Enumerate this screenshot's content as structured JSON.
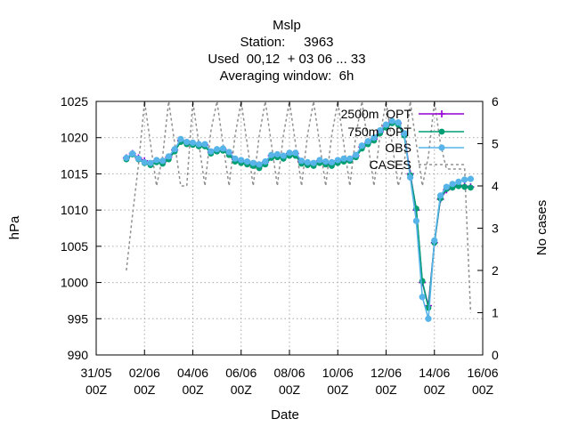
{
  "chart_data": {
    "type": "line",
    "title_lines": [
      "Mslp",
      "Station:     3963",
      "Used  00,12  + 03 06 ... 33",
      "Averaging window:  6h"
    ],
    "xlabel": "Date",
    "ylabel": "hPa",
    "y2label": "No cases",
    "xlim": [
      0,
      16
    ],
    "ylim": [
      990,
      1025
    ],
    "y2lim": [
      0,
      6
    ],
    "xticks": [
      {
        "value": 0,
        "line1": "31/05",
        "line2": "00Z"
      },
      {
        "value": 2,
        "line1": "02/06",
        "line2": "00Z"
      },
      {
        "value": 4,
        "line1": "04/06",
        "line2": "00Z"
      },
      {
        "value": 6,
        "line1": "06/06",
        "line2": "00Z"
      },
      {
        "value": 8,
        "line1": "08/06",
        "line2": "00Z"
      },
      {
        "value": 10,
        "line1": "10/06",
        "line2": "00Z"
      },
      {
        "value": 12,
        "line1": "12/06",
        "line2": "00Z"
      },
      {
        "value": 14,
        "line1": "14/06",
        "line2": "00Z"
      },
      {
        "value": 16,
        "line1": "16/06",
        "line2": "00Z"
      }
    ],
    "yticks": [
      990,
      995,
      1000,
      1005,
      1010,
      1015,
      1020,
      1025
    ],
    "y2ticks": [
      0,
      1,
      2,
      3,
      4,
      5,
      6
    ],
    "grid": true,
    "legend_position": "top-right",
    "series": [
      {
        "name": "2500m  OPT",
        "axis": "y",
        "color": "#9400d3",
        "marker": "plus",
        "x": [
          1.25,
          1.5,
          1.75,
          2,
          2.25,
          2.5,
          2.75,
          3,
          3.25,
          3.5,
          3.75,
          4,
          4.25,
          4.5,
          4.75,
          5,
          5.25,
          5.5,
          5.75,
          6,
          6.25,
          6.5,
          6.75,
          7,
          7.25,
          7.5,
          7.75,
          8,
          8.25,
          8.5,
          8.75,
          9,
          9.25,
          9.5,
          9.75,
          10,
          10.25,
          10.5,
          10.75,
          11,
          11.25,
          11.5,
          11.75,
          12,
          12.25,
          12.5,
          12.75,
          13,
          13.25,
          13.5,
          13.75,
          14,
          14.25,
          14.5,
          14.75,
          15,
          15.25,
          15.5
        ],
        "y": [
          1017.2,
          1017.8,
          1017.2,
          1016.8,
          1016.4,
          1016.8,
          1016.6,
          1017.3,
          1018.3,
          1019.6,
          1019.3,
          1019.2,
          1019.0,
          1019.0,
          1018.0,
          1018.3,
          1018.4,
          1017.9,
          1017.0,
          1016.8,
          1016.6,
          1016.4,
          1016.1,
          1016.6,
          1017.5,
          1017.6,
          1017.4,
          1017.8,
          1017.8,
          1016.7,
          1016.5,
          1016.4,
          1016.8,
          1016.6,
          1016.4,
          1016.8,
          1016.9,
          1017.0,
          1017.5,
          1018.7,
          1019.3,
          1019.8,
          1020.8,
          1021.6,
          1022.2,
          1022.0,
          1020.5,
          1015.0,
          1010.0,
          1000.0,
          996.8,
          1005.5,
          1011.5,
          1012.8,
          1013.2,
          1013.4,
          1013.3,
          1013.2
        ]
      },
      {
        "name": "750m  OPT",
        "axis": "y",
        "color": "#009e73",
        "marker": "circle",
        "x": [
          1.25,
          1.5,
          1.75,
          2,
          2.25,
          2.5,
          2.75,
          3,
          3.25,
          3.5,
          3.75,
          4,
          4.25,
          4.5,
          4.75,
          5,
          5.25,
          5.5,
          5.75,
          6,
          6.25,
          6.5,
          6.75,
          7,
          7.25,
          7.5,
          7.75,
          8,
          8.25,
          8.5,
          8.75,
          9,
          9.25,
          9.5,
          9.75,
          10,
          10.25,
          10.5,
          10.75,
          11,
          11.25,
          11.5,
          11.75,
          12,
          12.25,
          12.5,
          12.75,
          13,
          13.25,
          13.5,
          13.75,
          14,
          14.25,
          14.5,
          14.75,
          15,
          15.25,
          15.5
        ],
        "y": [
          1017.0,
          1017.7,
          1017.0,
          1016.5,
          1016.2,
          1016.6,
          1016.4,
          1017.0,
          1018.1,
          1019.4,
          1019.1,
          1019.0,
          1018.8,
          1018.8,
          1017.8,
          1018.1,
          1018.2,
          1017.6,
          1016.7,
          1016.5,
          1016.3,
          1016.1,
          1015.8,
          1016.3,
          1017.2,
          1017.3,
          1017.1,
          1017.5,
          1017.5,
          1016.4,
          1016.2,
          1016.1,
          1016.5,
          1016.3,
          1016.1,
          1016.5,
          1016.7,
          1016.8,
          1017.3,
          1018.5,
          1019.1,
          1019.6,
          1020.6,
          1021.4,
          1022.0,
          1021.8,
          1020.3,
          1014.8,
          1010.2,
          1000.2,
          996.5,
          1005.5,
          1011.6,
          1012.9,
          1013.1,
          1013.3,
          1013.2,
          1013.1
        ]
      },
      {
        "name": "OBS",
        "axis": "y",
        "color": "#56b4e9",
        "marker": "diamond",
        "x": [
          1.25,
          1.5,
          1.75,
          2,
          2.25,
          2.5,
          2.75,
          3,
          3.25,
          3.5,
          3.75,
          4,
          4.25,
          4.5,
          4.75,
          5,
          5.25,
          5.5,
          5.75,
          6,
          6.25,
          6.5,
          6.75,
          7,
          7.25,
          7.5,
          7.75,
          8,
          8.25,
          8.5,
          8.75,
          9,
          9.25,
          9.5,
          9.75,
          10,
          10.25,
          10.5,
          10.75,
          11,
          11.25,
          11.5,
          11.75,
          12,
          12.25,
          12.5,
          12.75,
          13,
          13.25,
          13.5,
          13.75,
          14,
          14.25,
          14.5,
          14.75,
          15,
          15.25,
          15.5
        ],
        "y": [
          1017.2,
          1017.8,
          1017.1,
          1016.6,
          1016.5,
          1016.9,
          1016.8,
          1017.4,
          1018.4,
          1019.8,
          1019.4,
          1019.3,
          1019.1,
          1019.1,
          1018.1,
          1018.4,
          1018.5,
          1018.0,
          1017.1,
          1016.9,
          1016.7,
          1016.5,
          1016.3,
          1016.7,
          1017.6,
          1017.7,
          1017.5,
          1017.9,
          1017.9,
          1016.8,
          1016.6,
          1016.5,
          1016.9,
          1016.7,
          1016.6,
          1016.9,
          1017.1,
          1017.1,
          1017.6,
          1018.9,
          1019.5,
          1020.0,
          1021.0,
          1021.8,
          1022.3,
          1022.1,
          1020.6,
          1014.5,
          1008.5,
          998.0,
          995.0,
          1005.8,
          1012.0,
          1013.2,
          1013.6,
          1013.9,
          1014.2,
          1014.3
        ]
      },
      {
        "name": "CASES",
        "axis": "y2",
        "color": "#909090",
        "dash": true,
        "x": [
          1.25,
          1.5,
          1.75,
          2,
          2.25,
          2.5,
          2.75,
          3,
          3.25,
          3.5,
          3.75,
          4,
          4.25,
          4.5,
          4.75,
          5,
          5.25,
          5.5,
          5.75,
          6,
          6.25,
          6.5,
          6.75,
          7,
          7.25,
          7.5,
          7.75,
          8,
          8.25,
          8.5,
          8.75,
          9,
          9.25,
          9.5,
          9.75,
          10,
          10.25,
          10.5,
          10.75,
          11,
          11.25,
          11.5,
          11.75,
          12,
          12.25,
          12.5,
          12.75,
          13,
          13.25,
          13.5,
          13.75,
          14,
          14.25,
          14.5,
          14.75,
          15,
          15.25,
          15.5
        ],
        "y": [
          2.0,
          3.3,
          4.5,
          6,
          5,
          4,
          4.7,
          6,
          5,
          4,
          4,
          6,
          5,
          4,
          5.3,
          6,
          5,
          4,
          5.2,
          6,
          5,
          4,
          5.2,
          6,
          5,
          4,
          5.2,
          6,
          5,
          4,
          5.2,
          6,
          5,
          4,
          5.2,
          6,
          5,
          4,
          5.2,
          6,
          5,
          4,
          5.2,
          6,
          5,
          4,
          4.5,
          6,
          5,
          4,
          4.7,
          6,
          5,
          4.4,
          4.4,
          4.4,
          4.4,
          1.0
        ]
      }
    ]
  }
}
